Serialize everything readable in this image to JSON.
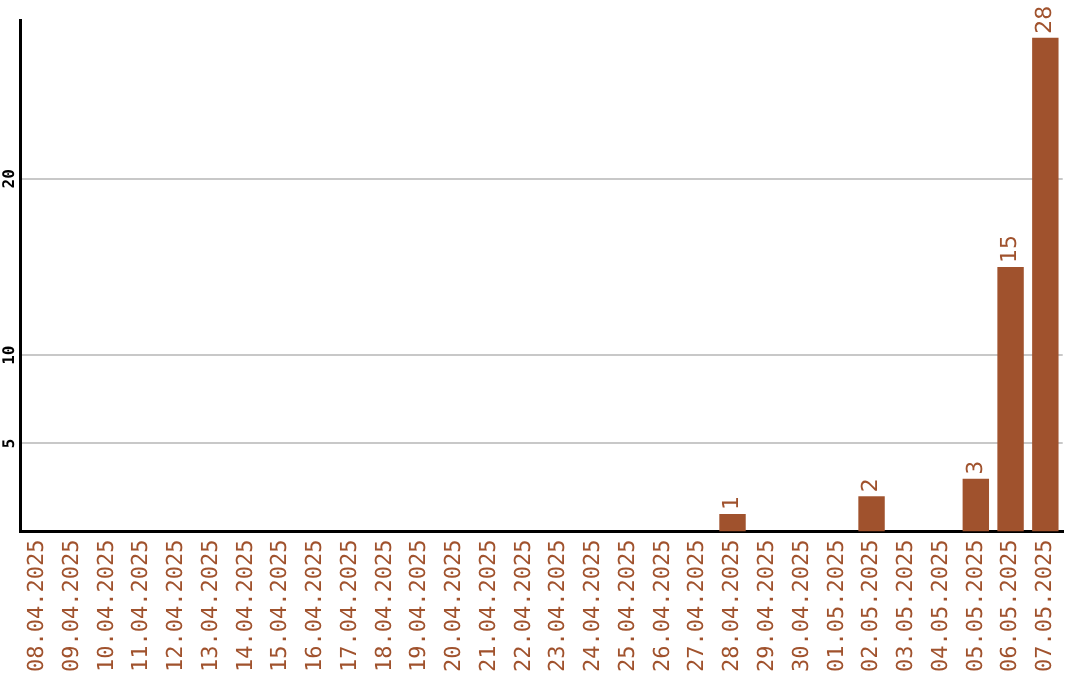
{
  "chart_data": {
    "type": "bar",
    "categories": [
      "08.04.2025",
      "09.04.2025",
      "10.04.2025",
      "11.04.2025",
      "12.04.2025",
      "13.04.2025",
      "14.04.2025",
      "15.04.2025",
      "16.04.2025",
      "17.04.2025",
      "18.04.2025",
      "19.04.2025",
      "20.04.2025",
      "21.04.2025",
      "22.04.2025",
      "23.04.2025",
      "24.04.2025",
      "25.04.2025",
      "26.04.2025",
      "27.04.2025",
      "28.04.2025",
      "29.04.2025",
      "30.04.2025",
      "01.05.2025",
      "02.05.2025",
      "03.05.2025",
      "04.05.2025",
      "05.05.2025",
      "06.05.2025",
      "07.05.2025"
    ],
    "values": [
      0,
      0,
      0,
      0,
      0,
      0,
      0,
      0,
      0,
      0,
      0,
      0,
      0,
      0,
      0,
      0,
      0,
      0,
      0,
      0,
      1,
      0,
      0,
      0,
      2,
      0,
      0,
      3,
      15,
      28
    ],
    "value_labels": [
      null,
      null,
      null,
      null,
      null,
      null,
      null,
      null,
      null,
      null,
      null,
      null,
      null,
      null,
      null,
      null,
      null,
      null,
      null,
      null,
      "1",
      null,
      null,
      null,
      "2",
      null,
      null,
      "3",
      "15",
      "28"
    ],
    "color": "#a0522d",
    "ylim": [
      0,
      29
    ],
    "yticks": [
      5,
      10,
      20
    ],
    "grid": "y",
    "legend": false
  }
}
